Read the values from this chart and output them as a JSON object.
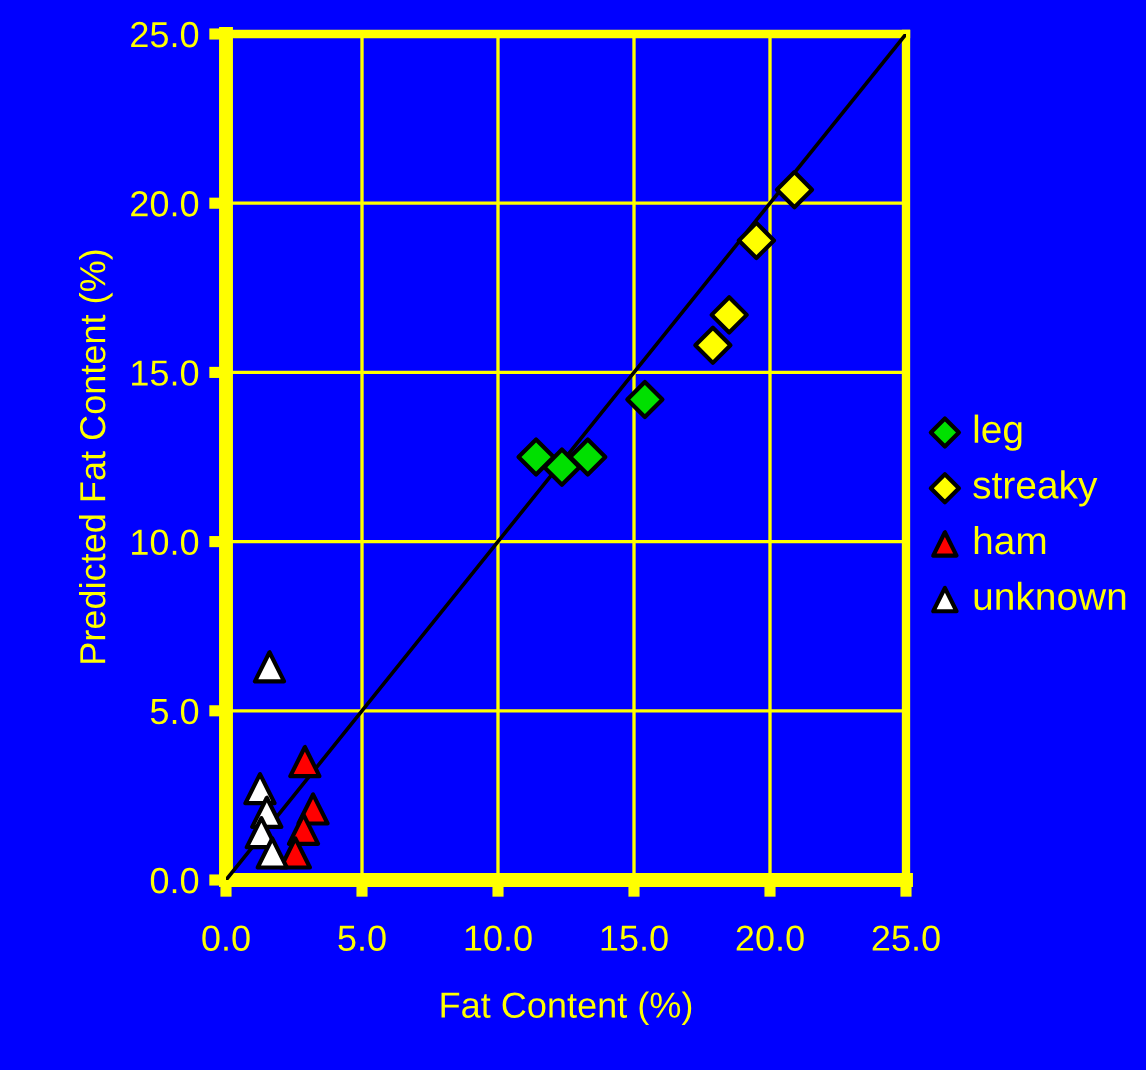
{
  "chart_data": {
    "type": "scatter",
    "xlabel": "Fat Content (%)",
    "ylabel": "Predicted Fat Content (%)",
    "xlim": [
      0,
      25
    ],
    "ylim": [
      0,
      25
    ],
    "xticks": [
      {
        "value": 0,
        "label": "0.0"
      },
      {
        "value": 5,
        "label": "5.0"
      },
      {
        "value": 10,
        "label": "10.0"
      },
      {
        "value": 15,
        "label": "15.0"
      },
      {
        "value": 20,
        "label": "20.0"
      },
      {
        "value": 25,
        "label": "25.0"
      }
    ],
    "yticks": [
      {
        "value": 0,
        "label": "0.0"
      },
      {
        "value": 5,
        "label": "5.0"
      },
      {
        "value": 10,
        "label": "10.0"
      },
      {
        "value": 15,
        "label": "15.0"
      },
      {
        "value": 20,
        "label": "20.0"
      },
      {
        "value": 25,
        "label": "25.0"
      }
    ],
    "grid": true,
    "legend": "right",
    "series": [
      {
        "type": "line",
        "color": "#000000",
        "x": [
          0,
          25
        ],
        "values": [
          0,
          25
        ],
        "marker": "none"
      },
      {
        "name": "leg",
        "color": "#00e000",
        "marker": "diamond",
        "x": [
          11.4,
          12.35,
          13.3,
          15.4
        ],
        "values": [
          12.5,
          12.2,
          12.5,
          14.2
        ]
      },
      {
        "name": "streaky",
        "color": "#ffff00",
        "marker": "diamond",
        "x": [
          17.9,
          18.5,
          19.5,
          20.9
        ],
        "values": [
          15.8,
          16.7,
          18.9,
          20.4
        ]
      },
      {
        "name": "ham",
        "color": "#ff0000",
        "marker": "triangle",
        "x": [
          2.9,
          3.2,
          2.85,
          2.55
        ],
        "values": [
          3.5,
          2.1,
          1.5,
          0.8
        ]
      },
      {
        "name": "unknown",
        "color": "#ffffff",
        "marker": "triangle",
        "x": [
          1.6,
          1.25,
          1.5,
          1.3,
          1.7
        ],
        "values": [
          6.3,
          2.7,
          2.0,
          1.4,
          0.8
        ]
      }
    ]
  }
}
